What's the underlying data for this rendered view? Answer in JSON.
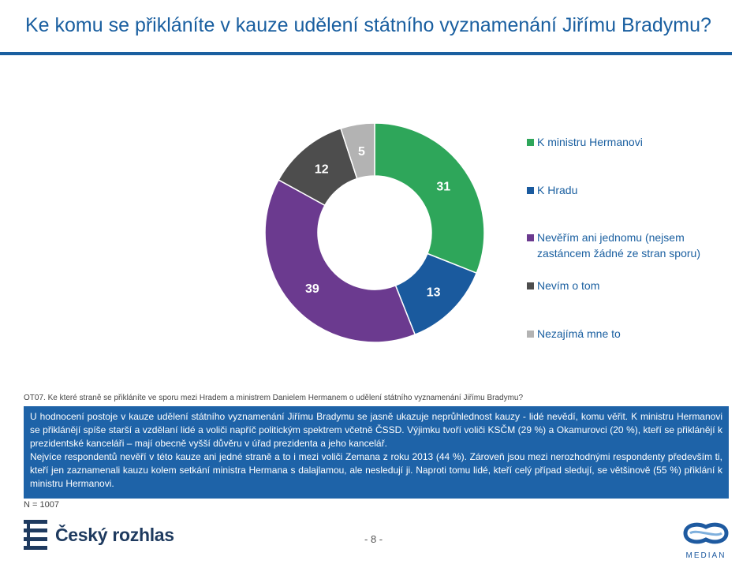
{
  "title": "Ke komu se přikláníte v kauze udělení státního vyznamenání Jiřímu Bradymu?",
  "chart_data": {
    "type": "pie",
    "donut": true,
    "title": "",
    "start_angle": "12 o'clock",
    "direction": "clockwise",
    "legend_position": "right",
    "slices": [
      {
        "label": "K ministru Hermanovi",
        "value": 31,
        "color": "#2ea65a"
      },
      {
        "label": "K Hradu",
        "value": 13,
        "color": "#1a5a9e"
      },
      {
        "label": "Nevěřím ani jednomu (nejsem zastáncem žádné ze stran sporu)",
        "value": 39,
        "color": "#6b3a8f"
      },
      {
        "label": "Nevím o tom",
        "value": 12,
        "color": "#4d4d4d"
      },
      {
        "label": "Nezajímá mne to",
        "value": 5,
        "color": "#b3b3b3"
      }
    ]
  },
  "legend": [
    "K ministru Hermanovi",
    "K Hradu",
    "Nevěřím ani jednomu (nejsem zastáncem žádné ze stran sporu)",
    "Nevím o tom",
    "Nezajímá mne to"
  ],
  "question": "OT07. Ke které straně se přikláníte ve sporu mezi Hradem a ministrem Danielem Hermanem o udělení státního vyznamenání Jiřímu Bradymu?",
  "summary": {
    "p1": "U hodnocení postoje v kauze udělení státního vyznamenání Jiřímu Bradymu se jasně ukazuje neprůhlednost kauzy - lidé nevědí, komu věřit. K ministru Hermanovi se přiklánějí spíše starší a vzdělaní lidé a voliči napříč politickým spektrem včetně ČSSD. Výjimku tvoří voliči KSČM (29 %) a Okamurovci (20 %), kteří se přiklánějí k prezidentské kanceláři – mají obecně vyšší důvěru v úřad prezidenta a jeho kancelář.",
    "p2": "Nejvíce respondentů nevěří v této kauze ani jedné straně a to i mezi voliči Zemana z roku 2013 (44 %). Zároveň jsou mezi nerozhodnými respondenty především ti, kteří jen zaznamenali kauzu kolem setkání ministra Hermana s dalajlamou, ale nesledují ji. Naproti tomu lidé, kteří celý případ sledují, se většinově (55 %) přiklání k ministru Hermanovi."
  },
  "sample": "N = 1007",
  "page_number": "- 8 -",
  "footer": {
    "brand_left": "Český rozhlas",
    "brand_right": "MEDIAN"
  },
  "colors": {
    "title": "#1a5fa0",
    "summary_bg": "#1e63a8",
    "brand_left": "#1e3a5f",
    "brand_right": "#1e5aa0"
  }
}
